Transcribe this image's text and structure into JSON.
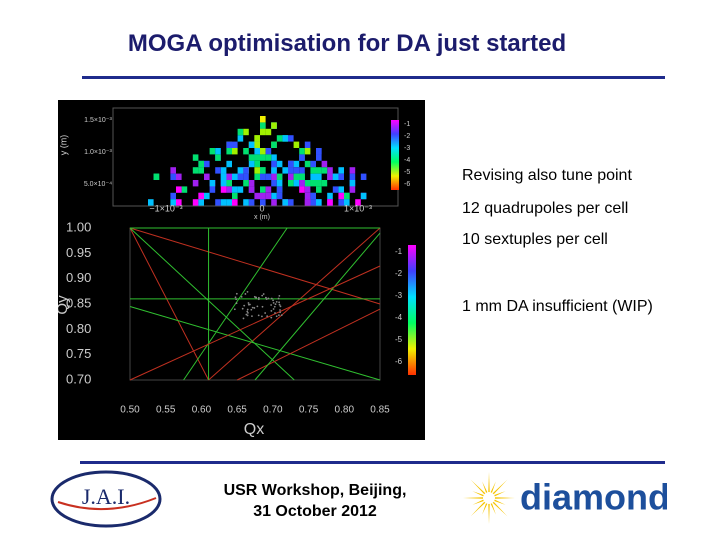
{
  "header": {
    "title": "MOGA optimisation for DA just started"
  },
  "bullets": [
    "Revising also tune point",
    "12 quadrupoles per cell",
    "10 sextuples per cell",
    "1 mm DA insufficient (WIP)"
  ],
  "figure": {
    "top_plot": {
      "y_label": "y (m)",
      "x_label": "x (m)",
      "y_ticks": [
        "1.5×10⁻³",
        "1.0×10⁻³",
        "5.0×10⁻⁴"
      ],
      "x_ticks": [
        "−1×10⁻³",
        "0",
        "1×10⁻³"
      ],
      "colorbar_ticks": [
        "-1",
        "-2",
        "-3",
        "-4",
        "-5",
        "-6"
      ]
    },
    "tune_plot": {
      "y_label": "Qy",
      "x_label": "Qx",
      "y_ticks": [
        "1.00",
        "0.95",
        "0.90",
        "0.85",
        "0.80",
        "0.75",
        "0.70"
      ],
      "x_ticks": [
        "0.50",
        "0.55",
        "0.60",
        "0.65",
        "0.70",
        "0.75",
        "0.80",
        "0.85"
      ],
      "colorbar_ticks": [
        "-1",
        "-2",
        "-3",
        "-4",
        "-5",
        "-6"
      ]
    }
  },
  "footer": {
    "event": "USR Workshop, Beijing,",
    "date": "31 October 2012",
    "logo_left": "J.A.I.",
    "logo_right": "diamond"
  }
}
